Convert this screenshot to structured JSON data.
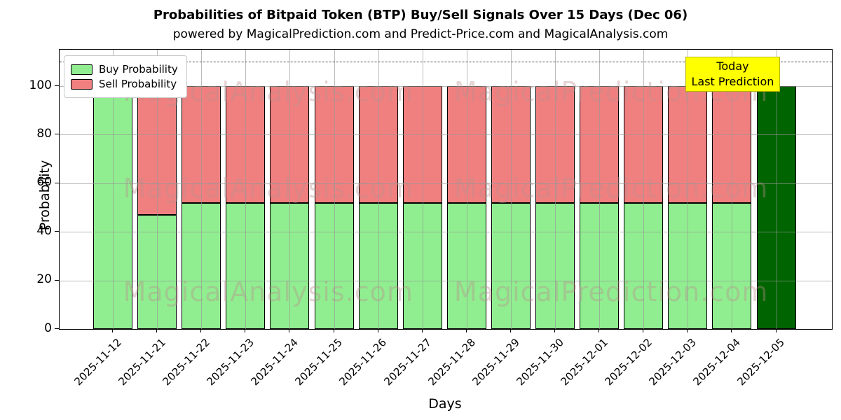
{
  "title": "Probabilities of Bitpaid Token (BTP) Buy/Sell Signals Over 15 Days (Dec 06)",
  "subtitle": "powered by MagicalPrediction.com and Predict-Price.com and MagicalAnalysis.com",
  "watermarks": [
    "MagicalAnalysis.com",
    "MagicalPrediction.com"
  ],
  "annotation": {
    "line1": "Today",
    "line2": "Last Prediction"
  },
  "legend": [
    {
      "label": "Buy Probability",
      "color": "#90ee90"
    },
    {
      "label": "Sell Probability",
      "color": "#f08080"
    }
  ],
  "colors": {
    "buy": "#90ee90",
    "sell": "#f08080",
    "last_bar_buy": "#006400",
    "annotation_bg": "#ffff00",
    "annotation_border": "#b5b500"
  },
  "chart_data": {
    "type": "bar",
    "stacked": true,
    "title": "Probabilities of Bitpaid Token (BTP) Buy/Sell Signals Over 15 Days (Dec 06)",
    "xlabel": "Days",
    "ylabel": "Probability",
    "ylim": [
      0,
      115
    ],
    "yticks": [
      0,
      20,
      40,
      60,
      80,
      100
    ],
    "dashed_line_y": 110,
    "grid": true,
    "legend_position": "upper left",
    "categories": [
      "2025-11-12",
      "2025-11-21",
      "2025-11-22",
      "2025-11-23",
      "2025-11-24",
      "2025-11-25",
      "2025-11-26",
      "2025-11-27",
      "2025-11-28",
      "2025-11-29",
      "2025-11-30",
      "2025-12-01",
      "2025-12-02",
      "2025-12-03",
      "2025-12-04",
      "2025-12-05"
    ],
    "series": [
      {
        "name": "Buy Probability",
        "color": "#90ee90",
        "values": [
          100,
          47,
          52,
          52,
          52,
          52,
          52,
          52,
          52,
          52,
          52,
          52,
          52,
          52,
          52,
          100
        ]
      },
      {
        "name": "Sell Probability",
        "color": "#f08080",
        "values": [
          0,
          53,
          48,
          48,
          48,
          48,
          48,
          48,
          48,
          48,
          48,
          48,
          48,
          48,
          48,
          0
        ]
      }
    ],
    "special_bars": [
      {
        "index": 15,
        "series": "Buy Probability",
        "color": "#006400"
      }
    ]
  }
}
